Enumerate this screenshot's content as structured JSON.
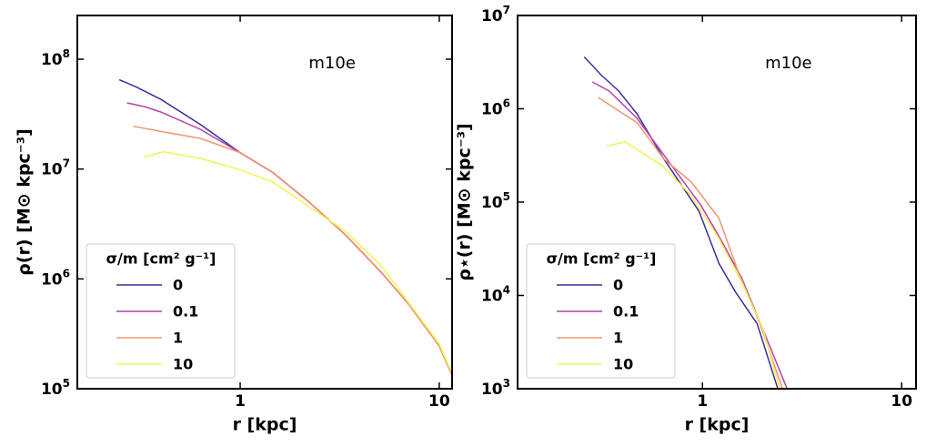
{
  "chart_data": [
    {
      "type": "line",
      "annotation": "m10e",
      "xlabel": "r [kpc]",
      "ylabel": "ρ(r) [M⊙ kpc⁻³]",
      "xscale": "log",
      "yscale": "log",
      "xlim": [
        0.152,
        11.6
      ],
      "ylim": [
        100000,
        250000000
      ],
      "xticks": [
        1,
        10
      ],
      "yticks": [
        {
          "value": 100000,
          "label": "10^5"
        },
        {
          "value": 1000000,
          "label": "10^6"
        },
        {
          "value": 10000000,
          "label": "10^7"
        },
        {
          "value": 100000000,
          "label": "10^8"
        }
      ],
      "legend_title": "σ/m [cm² g⁻¹]",
      "legend_loc": "lower left",
      "series": [
        {
          "name": "0",
          "color": "#3a2f9a",
          "x": [
            0.247,
            0.3,
            0.4,
            0.63,
            1.0,
            1.46,
            2.22,
            3.39,
            5.15,
            7.07,
            10.0,
            11.6
          ],
          "values": [
            65000000,
            56000000,
            43000000,
            25500000,
            14100000,
            9300000,
            5000000,
            2500000,
            1130000,
            580000,
            245000,
            133000
          ]
        },
        {
          "name": "0.1",
          "color": "#b93fb1",
          "x": [
            0.27,
            0.33,
            0.4,
            0.63,
            1.0,
            1.46,
            2.22,
            3.39,
            5.15,
            7.07,
            10.0,
            11.6
          ],
          "values": [
            40000000,
            37000000,
            33000000,
            23000000,
            14100000,
            9300000,
            5000000,
            2500000,
            1130000,
            580000,
            245000,
            133000
          ]
        },
        {
          "name": "1",
          "color": "#f2956b",
          "x": [
            0.29,
            0.4,
            0.63,
            1.0,
            1.46,
            2.22,
            3.39,
            5.15,
            7.07,
            10.0,
            11.6
          ],
          "values": [
            24500000,
            22000000,
            19000000,
            14100000,
            9300000,
            5000000,
            2500000,
            1130000,
            580000,
            245000,
            133000
          ]
        },
        {
          "name": "10",
          "color": "#f0f552",
          "x": [
            0.33,
            0.41,
            0.63,
            0.96,
            1.46,
            3.39,
            5.15,
            10.0,
            11.6
          ],
          "values": [
            12800000,
            14400000,
            12500000,
            10100000,
            7600000,
            2700000,
            1300000,
            255000,
            138000
          ]
        }
      ]
    },
    {
      "type": "line",
      "annotation": "m10e",
      "xlabel": "r [kpc]",
      "ylabel": "ρ⋆(r) [M⊙ kpc⁻³]",
      "xscale": "log",
      "yscale": "log",
      "xlim": [
        0.118,
        11.8
      ],
      "ylim": [
        1000,
        10000000
      ],
      "xticks": [
        1,
        10
      ],
      "yticks": [
        {
          "value": 1000,
          "label": "10^3"
        },
        {
          "value": 10000,
          "label": "10^4"
        },
        {
          "value": 100000,
          "label": "10^5"
        },
        {
          "value": 1000000,
          "label": "10^6"
        },
        {
          "value": 10000000,
          "label": "10^7"
        }
      ],
      "legend_title": "σ/m [cm² g⁻¹]",
      "legend_loc": "lower left",
      "series": [
        {
          "name": "0",
          "color": "#3a2f9a",
          "x": [
            0.255,
            0.31,
            0.38,
            0.47,
            0.64,
            0.96,
            1.21,
            1.46,
            1.88,
            2.39
          ],
          "values": [
            3600000,
            2300000,
            1550000,
            880000,
            290000,
            80000,
            22000,
            11000,
            5000,
            1000
          ]
        },
        {
          "name": "0.1",
          "color": "#b93fb1",
          "x": [
            0.28,
            0.34,
            0.47,
            0.64,
            0.98,
            1.21,
            1.57,
            2.04,
            2.66
          ],
          "values": [
            1940000,
            1550000,
            790000,
            320000,
            93000,
            43000,
            15500,
            4000,
            1000
          ]
        },
        {
          "name": "1",
          "color": "#f2956b",
          "x": [
            0.3,
            0.38,
            0.47,
            0.64,
            0.88,
            1.21,
            1.52,
            1.94,
            2.52
          ],
          "values": [
            1320000,
            950000,
            710000,
            290000,
            164000,
            67000,
            17300,
            5000,
            1000
          ]
        },
        {
          "name": "10",
          "color": "#f0f552",
          "x": [
            0.33,
            0.41,
            0.63,
            0.88,
            1.21,
            1.57,
            2.0,
            2.44
          ],
          "values": [
            400000,
            440000,
            245000,
            117000,
            40700,
            14000,
            4500,
            1000
          ]
        }
      ]
    }
  ]
}
